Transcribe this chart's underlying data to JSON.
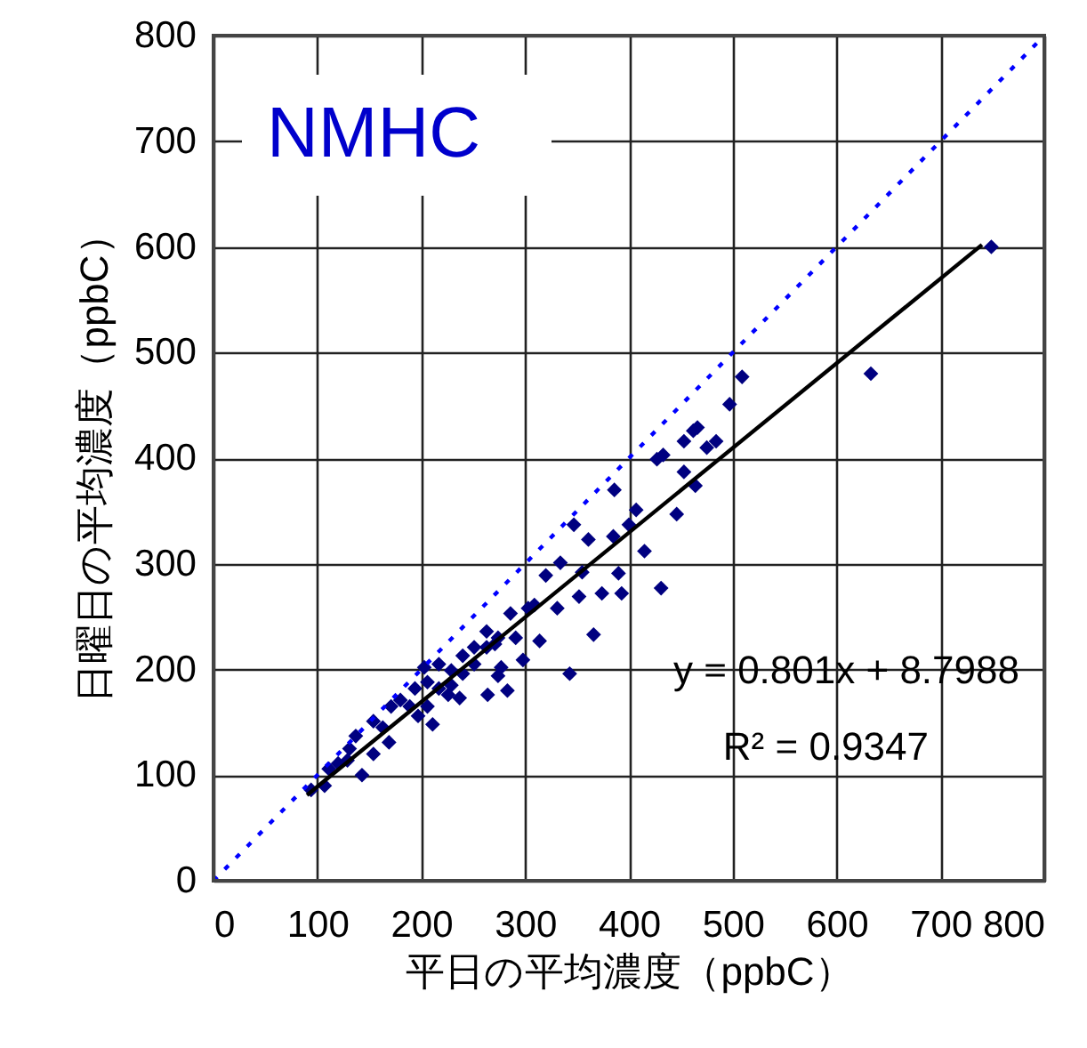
{
  "chart_data": {
    "type": "scatter",
    "xlabel": "平日の平均濃度（ppbC）",
    "ylabel": "日曜日の平均濃度（ppbC）",
    "annotations": [
      "NMHC",
      "y = 0.801x + 8.7988",
      "R² = 0.9347"
    ],
    "x": [
      749,
      633,
      509,
      497,
      484,
      475,
      466,
      462,
      453,
      453,
      464,
      427,
      433,
      446,
      386,
      407,
      400,
      385,
      415,
      347,
      361,
      431,
      390,
      393,
      374,
      366,
      343,
      352,
      355,
      334,
      320,
      331,
      309,
      303,
      314,
      298,
      283,
      286,
      263,
      274,
      291,
      277,
      274,
      264,
      251,
      240,
      229,
      217,
      203,
      206,
      226,
      237,
      211,
      197,
      180,
      171,
      154,
      163,
      169,
      154,
      137,
      131,
      143,
      120,
      111,
      129,
      107,
      94,
      189,
      194,
      251,
      240,
      263,
      271,
      229,
      217,
      206
    ],
    "xlim": [
      0,
      800
    ],
    "xticks": [
      0,
      100,
      200,
      300,
      400,
      500,
      600,
      700,
      800
    ],
    "ylim": [
      0,
      800
    ],
    "yticks": [
      0,
      100,
      200,
      300,
      400,
      500,
      600,
      700,
      800
    ],
    "grid": true,
    "marker": "diamond",
    "series": [
      {
        "color": "#000080",
        "values": [
          600,
          480,
          477,
          451,
          416,
          410,
          429,
          426,
          416,
          387,
          374,
          399,
          403,
          347,
          370,
          351,
          337,
          326,
          312,
          337,
          323,
          277,
          291,
          272,
          272,
          233,
          196,
          269,
          292,
          301,
          289,
          258,
          261,
          258,
          227,
          209,
          180,
          253,
          236,
          230,
          230,
          202,
          194,
          176,
          205,
          213,
          199,
          205,
          202,
          188,
          176,
          173,
          148,
          156,
          171,
          165,
          151,
          145,
          131,
          120,
          137,
          125,
          100,
          111,
          106,
          114,
          90,
          86,
          165,
          182,
          221,
          196,
          221,
          224,
          185,
          182,
          165
        ]
      },
      {
        "type": "line",
        "color": "#000000",
        "x": [
          90,
          740
        ],
        "values": [
          81,
          602
        ],
        "marker": "none"
      },
      {
        "type": "line",
        "color": "#0000ff",
        "x": [
          0,
          800
        ],
        "values": [
          0,
          800
        ],
        "marker": "none",
        "line_style": "dotted"
      }
    ]
  }
}
